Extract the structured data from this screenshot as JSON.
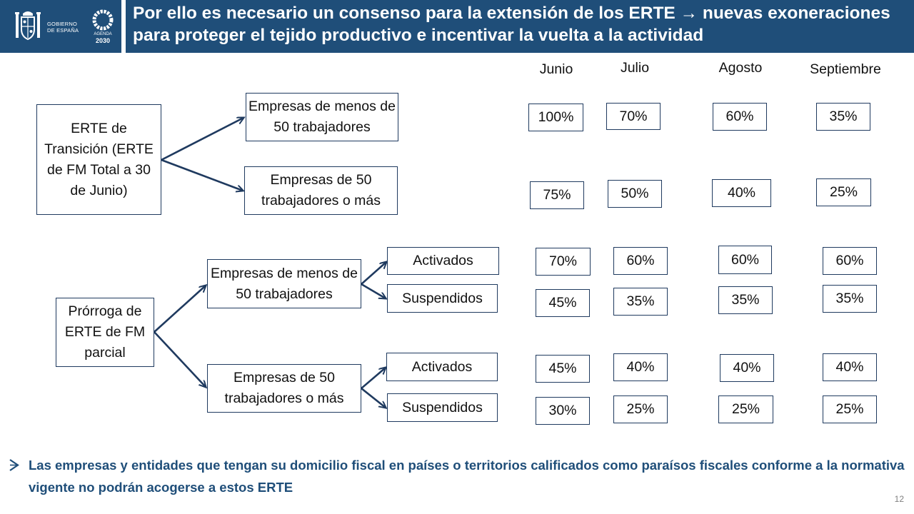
{
  "header": {
    "title": "Por ello es necesario un consenso para la extensión de los ERTE → nuevas exoneraciones para proteger el tejido productivo e incentivar la vuelta a  la actividad",
    "gov_line1": "GOBIERNO",
    "gov_line2": "DE ESPAÑA",
    "agenda_label": "AGENDA",
    "agenda_year": "2030",
    "bar_color": "#1f4e79"
  },
  "months": [
    "Junio",
    "Julio",
    "Agosto",
    "Septiembre"
  ],
  "categories": {
    "transicion": "ERTE de Transición (ERTE de FM Total a 30 de Junio)",
    "prorroga": "Prórroga de ERTE de FM parcial"
  },
  "groups": {
    "t_menos": "Empresas de menos de 50 trabajadores",
    "t_mas": "Empresas de 50 trabajadores o más",
    "p_menos": "Empresas de menos de 50 trabajadores",
    "p_mas": "Empresas de 50 trabajadores o más"
  },
  "statuses": {
    "p_menos_act": "Activados",
    "p_menos_sus": "Suspendidos",
    "p_mas_act": "Activados",
    "p_mas_sus": "Suspendidos"
  },
  "rows": {
    "t_menos": [
      "100%",
      "70%",
      "60%",
      "35%"
    ],
    "t_mas": [
      "75%",
      "50%",
      "40%",
      "25%"
    ],
    "p_menos_act": [
      "70%",
      "60%",
      "60%",
      "60%"
    ],
    "p_menos_sus": [
      "45%",
      "35%",
      "35%",
      "35%"
    ],
    "p_mas_act": [
      "45%",
      "40%",
      "40%",
      "40%"
    ],
    "p_mas_sus": [
      "30%",
      "25%",
      "25%",
      "25%"
    ]
  },
  "footnote": "Las empresas y entidades que tengan su domicilio fiscal en países o territorios calificados como paraísos fiscales conforme a la normativa vigente no podrán acogerse a estos ERTE",
  "page_number": "12"
}
